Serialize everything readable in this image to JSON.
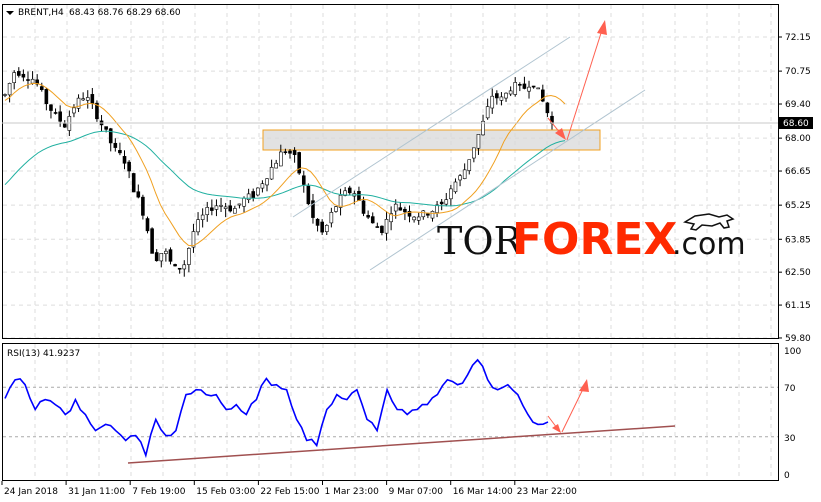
{
  "header": {
    "symbol": "BRENT,H4",
    "ohlc": "68.43 68.76 68.29 68.60",
    "menu_icon": "triangle-down-icon"
  },
  "logo": {
    "part1": "TOR",
    "part2": "FOREX",
    "part3": ".com",
    "icon": "bull-icon"
  },
  "price_axis": {
    "ticks": [
      "72.15",
      "70.75",
      "69.40",
      "68.00",
      "66.65",
      "65.25",
      "63.85",
      "62.50",
      "61.15",
      "59.80"
    ],
    "current": "68.60"
  },
  "rsi": {
    "label": "RSI(13) 41.9237",
    "ticks": [
      "100",
      "70",
      "30",
      "0"
    ]
  },
  "time_axis": {
    "ticks": [
      "24 Jan 2018",
      "31 Jan 11:00",
      "7 Feb 19:00",
      "15 Feb 03:00",
      "22 Feb 15:00",
      "1 Mar 23:00",
      "9 Mar 07:00",
      "16 Mar 14:00",
      "23 Mar 22:00"
    ]
  },
  "colors": {
    "candle": "#000000",
    "ma_fast": "#f0a020",
    "ma_slow": "#20b0a0",
    "rsi": "#0000ff",
    "arrow": "#ff6050",
    "channel": "#b0c4d0",
    "trendline": "#a05050"
  },
  "chart_data": [
    {
      "type": "candlestick",
      "title": "BRENT,H4",
      "ylim": [
        59.8,
        72.8
      ],
      "closes": [
        69.77,
        70.8,
        70.59,
        70.39,
        69.57,
        68.95,
        68.54,
        69.36,
        69.77,
        69.16,
        68.34,
        67.52,
        67.11,
        65.88,
        64.85,
        63.01,
        63.42,
        62.6,
        62.81,
        64.24,
        64.85,
        65.26,
        65.26,
        65.06,
        65.47,
        65.67,
        66.29,
        66.9,
        67.52,
        67.31,
        66.08,
        64.65,
        64.04,
        65.06,
        65.67,
        65.88,
        65.06,
        64.45,
        64.24,
        65.26,
        65.06,
        64.85,
        64.85,
        65.06,
        65.26,
        66.08,
        66.49,
        67.52,
        68.54,
        69.77,
        69.57,
        70.18,
        69.98,
        70.39,
        69.57,
        68.6
      ],
      "support_zone": [
        67.55,
        68.35
      ],
      "moving_averages": [
        "fast",
        "slow"
      ]
    },
    {
      "type": "line",
      "title": "RSI(13) 41.9237",
      "ylim": [
        0,
        100
      ],
      "levels": [
        30,
        70
      ],
      "values": [
        61,
        76,
        72,
        52,
        60,
        56,
        48,
        60,
        48,
        35,
        40,
        35,
        27,
        31,
        15,
        44,
        31,
        35,
        64,
        68,
        64,
        64,
        52,
        56,
        48,
        60,
        77,
        72,
        68,
        44,
        27,
        23,
        52,
        64,
        60,
        68,
        44,
        35,
        68,
        52,
        48,
        52,
        56,
        64,
        76,
        72,
        80,
        92,
        76,
        68,
        72,
        64,
        48,
        40,
        41.92
      ]
    }
  ]
}
